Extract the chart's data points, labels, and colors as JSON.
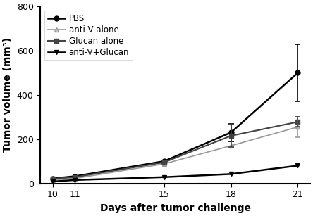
{
  "days": [
    10,
    11,
    15,
    18,
    21
  ],
  "series": [
    {
      "label": "PBS",
      "color": "#000000",
      "marker": "o",
      "markersize": 5,
      "linestyle": "-",
      "linewidth": 1.8,
      "values": [
        22,
        32,
        100,
        230,
        500
      ],
      "yerr": [
        null,
        null,
        null,
        40,
        130
      ],
      "markerfacecolor": "#000000"
    },
    {
      "label": "anti-V alone",
      "color": "#999999",
      "marker": "^",
      "markersize": 5,
      "linestyle": "-",
      "linewidth": 1.2,
      "values": [
        15,
        22,
        88,
        170,
        255
      ],
      "yerr": [
        null,
        null,
        null,
        null,
        45
      ],
      "markerfacecolor": "#cccccc"
    },
    {
      "label": "Glucan alone",
      "color": "#444444",
      "marker": "s",
      "markersize": 5,
      "linestyle": "-",
      "linewidth": 1.5,
      "values": [
        20,
        28,
        95,
        215,
        278
      ],
      "yerr": [
        null,
        null,
        8,
        50,
        22
      ],
      "markerfacecolor": "#444444"
    },
    {
      "label": "anti-V+Glucan",
      "color": "#000000",
      "marker": "v",
      "markersize": 5,
      "linestyle": "-",
      "linewidth": 1.8,
      "values": [
        8,
        15,
        28,
        42,
        80
      ],
      "yerr": [
        null,
        null,
        null,
        null,
        null
      ],
      "markerfacecolor": "#000000"
    }
  ],
  "xlabel": "Days after tumor challenge",
  "ylabel": "Tumor volume (mm³)",
  "ylim": [
    0,
    800
  ],
  "yticks": [
    0,
    200,
    400,
    600,
    800
  ],
  "xticks": [
    10,
    11,
    15,
    18,
    21
  ],
  "legend_loc": "upper left",
  "background_color": "#ffffff",
  "axis_fontsize": 10,
  "tick_fontsize": 9,
  "legend_fontsize": 8.5
}
